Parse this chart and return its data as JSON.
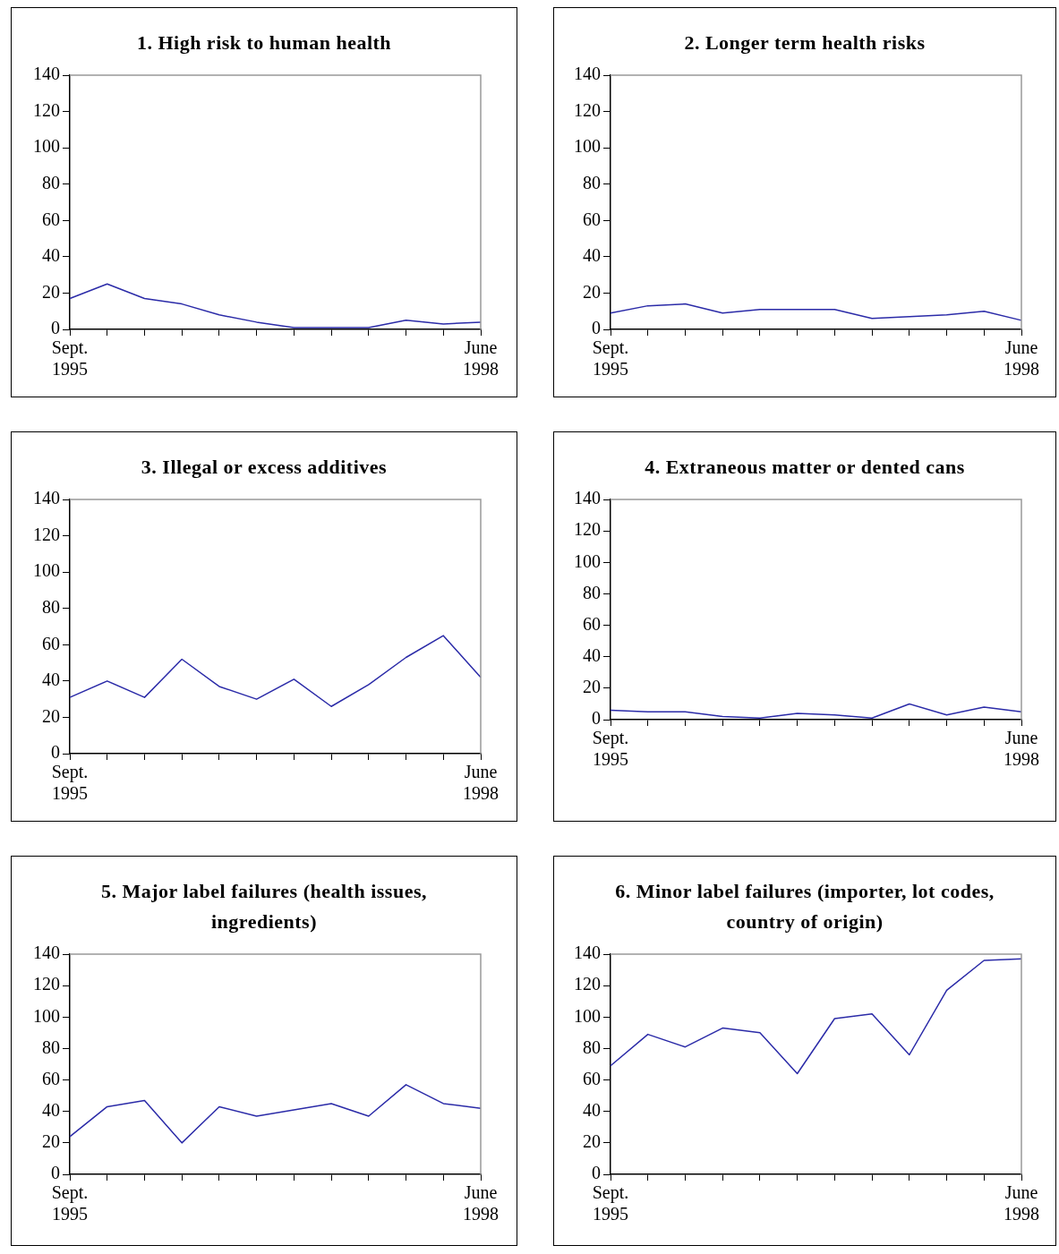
{
  "chart_data": [
    {
      "type": "line",
      "title": "1.  High risk to human health",
      "categories": [
        "Sept. 1995",
        null,
        null,
        null,
        null,
        null,
        null,
        null,
        null,
        null,
        null,
        "June 1998"
      ],
      "values": [
        17,
        25,
        17,
        14,
        8,
        4,
        1,
        1,
        1,
        5,
        3,
        4
      ],
      "color": "#2b2ba8",
      "ylim": [
        0,
        140
      ],
      "yticks": [
        0,
        20,
        40,
        60,
        80,
        100,
        120,
        140
      ],
      "marker": "none"
    },
    {
      "type": "line",
      "title": "2.  Longer term health risks",
      "categories": [
        "Sept. 1995",
        null,
        null,
        null,
        null,
        null,
        null,
        null,
        null,
        null,
        null,
        "June 1998"
      ],
      "values": [
        9,
        13,
        14,
        9,
        11,
        11,
        11,
        6,
        7,
        8,
        10,
        5
      ],
      "color": "#2b2ba8",
      "ylim": [
        0,
        140
      ],
      "yticks": [
        0,
        20,
        40,
        60,
        80,
        100,
        120,
        140
      ],
      "marker": "none"
    },
    {
      "type": "line",
      "title": "3.  Illegal or excess additives",
      "categories": [
        "Sept. 1995",
        null,
        null,
        null,
        null,
        null,
        null,
        null,
        null,
        null,
        null,
        "June 1998"
      ],
      "values": [
        31,
        40,
        31,
        52,
        37,
        30,
        41,
        26,
        38,
        53,
        65,
        42
      ],
      "color": "#2b2ba8",
      "ylim": [
        0,
        140
      ],
      "yticks": [
        0,
        20,
        40,
        60,
        80,
        100,
        120,
        140
      ],
      "marker": "none"
    },
    {
      "type": "line",
      "title": "4.  Extraneous matter or dented cans",
      "categories": [
        "Sept. 1995",
        null,
        null,
        null,
        null,
        null,
        null,
        null,
        null,
        null,
        null,
        "June 1998"
      ],
      "values": [
        6,
        5,
        5,
        2,
        1,
        4,
        3,
        1,
        10,
        3,
        8,
        5
      ],
      "color": "#2b2ba8",
      "ylim": [
        0,
        140
      ],
      "yticks": [
        0,
        20,
        40,
        60,
        80,
        100,
        120,
        140
      ],
      "marker": "none"
    },
    {
      "type": "line",
      "title": "5.  Major label failures (health issues, ingredients)",
      "categories": [
        "Sept. 1995",
        null,
        null,
        null,
        null,
        null,
        null,
        null,
        null,
        null,
        null,
        "June 1998"
      ],
      "values": [
        24,
        43,
        47,
        20,
        43,
        37,
        41,
        45,
        37,
        57,
        45,
        42
      ],
      "color": "#2b2ba8",
      "ylim": [
        0,
        140
      ],
      "yticks": [
        0,
        20,
        40,
        60,
        80,
        100,
        120,
        140
      ],
      "marker": "none"
    },
    {
      "type": "line",
      "title": "6.  Minor label failures (importer, lot codes, country of origin)",
      "categories": [
        "Sept. 1995",
        null,
        null,
        null,
        null,
        null,
        null,
        null,
        null,
        null,
        null,
        "June 1998"
      ],
      "values": [
        69,
        89,
        81,
        93,
        90,
        64,
        99,
        102,
        76,
        117,
        136,
        137
      ],
      "color": "#2b2ba8",
      "ylim": [
        0,
        140
      ],
      "yticks": [
        0,
        20,
        40,
        60,
        80,
        100,
        120,
        140
      ],
      "marker": "none"
    }
  ]
}
